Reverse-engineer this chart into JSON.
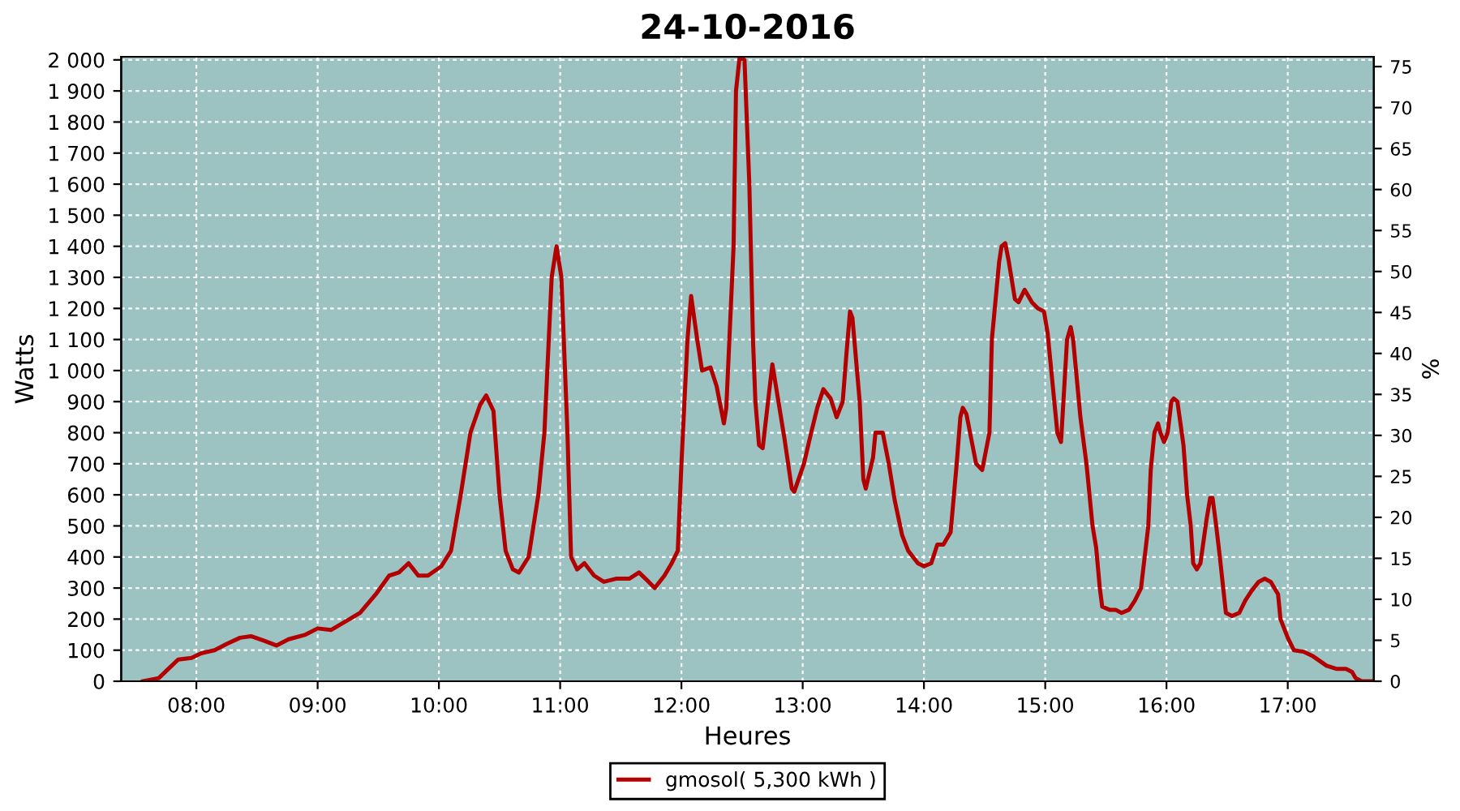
{
  "chart_data": {
    "type": "line",
    "title": "24-10-2016",
    "xlabel": "Heures",
    "ylabel": "Watts",
    "y2label": "%",
    "xlim": [
      7.38,
      17.71
    ],
    "xticks": [
      {
        "value": 8,
        "label": "08:00"
      },
      {
        "value": 9,
        "label": "09:00"
      },
      {
        "value": 10,
        "label": "10:00"
      },
      {
        "value": 11,
        "label": "11:00"
      },
      {
        "value": 12,
        "label": "12:00"
      },
      {
        "value": 13,
        "label": "13:00"
      },
      {
        "value": 14,
        "label": "14:00"
      },
      {
        "value": 15,
        "label": "15:00"
      },
      {
        "value": 16,
        "label": "16:00"
      },
      {
        "value": 17,
        "label": "17:00"
      }
    ],
    "ylim": [
      0,
      2010
    ],
    "yticks": [
      0,
      100,
      200,
      300,
      400,
      500,
      600,
      700,
      800,
      900,
      {
        "value": 1000,
        "label": "1 000"
      },
      {
        "value": 1100,
        "label": "1 100"
      },
      {
        "value": 1200,
        "label": "1 200"
      },
      {
        "value": 1300,
        "label": "1 300"
      },
      {
        "value": 1400,
        "label": "1 400"
      },
      {
        "value": 1500,
        "label": "1 500"
      },
      {
        "value": 1600,
        "label": "1 600"
      },
      {
        "value": 1700,
        "label": "1 700"
      },
      {
        "value": 1800,
        "label": "1 800"
      },
      {
        "value": 1900,
        "label": "1 900"
      },
      {
        "value": 2000,
        "label": "2 000"
      }
    ],
    "y2lim": [
      0,
      76.2
    ],
    "y2ticks": [
      0,
      5,
      10,
      15,
      20,
      25,
      30,
      35,
      40,
      45,
      50,
      55,
      60,
      65,
      70,
      75
    ],
    "grid": true,
    "legend": "bottom",
    "line_style": "solid",
    "marker": "none",
    "series": [
      {
        "name": "gmosol( 5,300 kWh )",
        "color": "#b30000",
        "x": [
          7.56,
          7.69,
          7.77,
          7.85,
          7.96,
          8.04,
          8.15,
          8.25,
          8.36,
          8.45,
          8.56,
          8.66,
          8.76,
          8.9,
          9.0,
          9.11,
          9.22,
          9.35,
          9.48,
          9.59,
          9.67,
          9.75,
          9.83,
          9.91,
          10.02,
          10.1,
          10.18,
          10.26,
          10.34,
          10.39,
          10.45,
          10.5,
          10.55,
          10.61,
          10.66,
          10.74,
          10.82,
          10.87,
          10.93,
          10.97,
          11.01,
          11.06,
          11.09,
          11.14,
          11.2,
          11.28,
          11.36,
          11.46,
          11.57,
          11.65,
          11.73,
          11.78,
          11.86,
          11.92,
          11.97,
          12.0,
          12.05,
          12.08,
          12.13,
          12.17,
          12.24,
          12.29,
          12.35,
          12.37,
          12.43,
          12.45,
          12.48,
          12.52,
          12.56,
          12.59,
          12.61,
          12.64,
          12.67,
          12.72,
          12.75,
          12.8,
          12.85,
          12.91,
          12.93,
          13.01,
          13.07,
          13.12,
          13.17,
          13.23,
          13.28,
          13.33,
          13.36,
          13.39,
          13.41,
          13.47,
          13.5,
          13.52,
          13.58,
          13.6,
          13.66,
          13.71,
          13.76,
          13.82,
          13.87,
          13.95,
          14.0,
          14.06,
          14.11,
          14.16,
          14.22,
          14.27,
          14.3,
          14.32,
          14.35,
          14.4,
          14.43,
          14.48,
          14.54,
          14.56,
          14.62,
          14.64,
          14.67,
          14.7,
          14.75,
          14.78,
          14.83,
          14.89,
          14.94,
          14.99,
          15.02,
          15.05,
          15.1,
          15.13,
          15.15,
          15.18,
          15.21,
          15.23,
          15.29,
          15.34,
          15.39,
          15.42,
          15.45,
          15.47,
          15.53,
          15.58,
          15.63,
          15.69,
          15.74,
          15.79,
          15.85,
          15.87,
          15.9,
          15.93,
          15.95,
          15.98,
          16.01,
          16.04,
          16.06,
          16.09,
          16.14,
          16.17,
          16.2,
          16.22,
          16.25,
          16.28,
          16.33,
          16.36,
          16.38,
          16.41,
          16.44,
          16.49,
          16.54,
          16.6,
          16.65,
          16.7,
          16.76,
          16.81,
          16.86,
          16.92,
          16.94,
          17.0,
          17.05,
          17.13,
          17.21,
          17.32,
          17.4,
          17.48,
          17.53,
          17.56,
          17.61,
          17.69
        ],
        "values": [
          0,
          10,
          40,
          70,
          75,
          90,
          100,
          120,
          140,
          145,
          130,
          115,
          135,
          150,
          170,
          165,
          190,
          220,
          280,
          340,
          350,
          380,
          340,
          340,
          370,
          420,
          600,
          800,
          890,
          920,
          870,
          600,
          420,
          360,
          350,
          400,
          600,
          800,
          1300,
          1400,
          1300,
          800,
          400,
          360,
          380,
          340,
          320,
          330,
          330,
          350,
          320,
          300,
          340,
          380,
          420,
          700,
          1100,
          1240,
          1100,
          1000,
          1010,
          950,
          830,
          880,
          1400,
          1900,
          2010,
          2000,
          1600,
          1100,
          900,
          760,
          750,
          920,
          1020,
          900,
          780,
          620,
          610,
          700,
          800,
          880,
          940,
          910,
          850,
          900,
          1050,
          1190,
          1170,
          900,
          650,
          620,
          720,
          800,
          800,
          700,
          580,
          470,
          420,
          380,
          370,
          380,
          440,
          440,
          480,
          700,
          850,
          880,
          860,
          760,
          700,
          680,
          800,
          1100,
          1350,
          1400,
          1410,
          1350,
          1230,
          1220,
          1260,
          1220,
          1200,
          1190,
          1120,
          1000,
          800,
          770,
          900,
          1100,
          1140,
          1100,
          850,
          700,
          500,
          430,
          300,
          240,
          230,
          230,
          220,
          230,
          260,
          300,
          500,
          680,
          800,
          830,
          800,
          770,
          800,
          900,
          910,
          900,
          760,
          600,
          500,
          380,
          360,
          380,
          520,
          590,
          590,
          500,
          400,
          220,
          210,
          220,
          260,
          290,
          320,
          330,
          320,
          280,
          200,
          140,
          100,
          95,
          80,
          50,
          40,
          40,
          30,
          10,
          0,
          0
        ]
      }
    ]
  }
}
